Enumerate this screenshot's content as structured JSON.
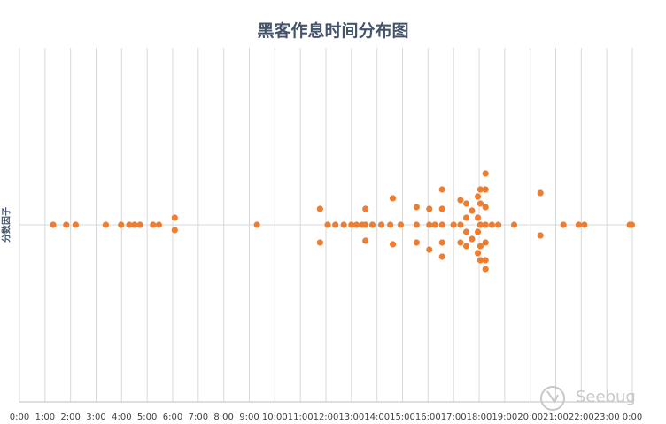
{
  "chart_data": {
    "type": "scatter",
    "title": "黑客作息时间分布图",
    "xlabel": "",
    "ylabel": "分数因子",
    "xlim": [
      0,
      24
    ],
    "ylim": [
      -1,
      1
    ],
    "grid": "vertical",
    "colors": {
      "points": "#ed7d31",
      "grid": "#d9d9d9",
      "title": "#44546a"
    },
    "x_ticks": [
      "0:00",
      "1:00",
      "2:00",
      "3:00",
      "4:00",
      "5:00",
      "6:00",
      "7:00",
      "8:00",
      "9:00",
      "10:00",
      "11:00",
      "12:00",
      "13:00",
      "14:00",
      "15:00",
      "16:00",
      "17:00",
      "18:00",
      "19:00",
      "20:00",
      "21:00",
      "22:00",
      "23:00",
      "0:00"
    ],
    "points": [
      {
        "x": 1.32,
        "y": 0
      },
      {
        "x": 1.83,
        "y": 0
      },
      {
        "x": 2.2,
        "y": 0
      },
      {
        "x": 3.38,
        "y": 0
      },
      {
        "x": 3.98,
        "y": 0
      },
      {
        "x": 4.3,
        "y": 0
      },
      {
        "x": 4.5,
        "y": 0
      },
      {
        "x": 4.72,
        "y": 0
      },
      {
        "x": 5.23,
        "y": 0
      },
      {
        "x": 5.46,
        "y": 0
      },
      {
        "x": 6.08,
        "y": 0.04
      },
      {
        "x": 6.08,
        "y": -0.03
      },
      {
        "x": 9.3,
        "y": 0
      },
      {
        "x": 11.77,
        "y": 0.09
      },
      {
        "x": 11.77,
        "y": -0.1
      },
      {
        "x": 12.07,
        "y": 0
      },
      {
        "x": 12.37,
        "y": 0
      },
      {
        "x": 12.7,
        "y": 0
      },
      {
        "x": 13.0,
        "y": 0
      },
      {
        "x": 13.2,
        "y": 0
      },
      {
        "x": 13.42,
        "y": 0
      },
      {
        "x": 13.55,
        "y": 0.09
      },
      {
        "x": 13.55,
        "y": 0
      },
      {
        "x": 13.55,
        "y": -0.09
      },
      {
        "x": 13.82,
        "y": 0
      },
      {
        "x": 14.17,
        "y": 0
      },
      {
        "x": 14.52,
        "y": 0
      },
      {
        "x": 14.62,
        "y": 0.15
      },
      {
        "x": 14.62,
        "y": -0.11
      },
      {
        "x": 14.93,
        "y": 0
      },
      {
        "x": 15.55,
        "y": 0.1
      },
      {
        "x": 15.55,
        "y": 0
      },
      {
        "x": 15.55,
        "y": -0.1
      },
      {
        "x": 16.05,
        "y": 0.09
      },
      {
        "x": 16.05,
        "y": 0
      },
      {
        "x": 16.05,
        "y": -0.14
      },
      {
        "x": 16.27,
        "y": 0
      },
      {
        "x": 16.55,
        "y": 0.2
      },
      {
        "x": 16.55,
        "y": 0.09
      },
      {
        "x": 16.55,
        "y": 0
      },
      {
        "x": 16.55,
        "y": -0.1
      },
      {
        "x": 16.55,
        "y": -0.18
      },
      {
        "x": 17.0,
        "y": 0
      },
      {
        "x": 17.27,
        "y": 0.14
      },
      {
        "x": 17.27,
        "y": 0
      },
      {
        "x": 17.27,
        "y": -0.1
      },
      {
        "x": 17.5,
        "y": 0.12
      },
      {
        "x": 17.5,
        "y": 0.04
      },
      {
        "x": 17.5,
        "y": -0.04
      },
      {
        "x": 17.5,
        "y": -0.12
      },
      {
        "x": 17.72,
        "y": 0.08
      },
      {
        "x": 17.72,
        "y": -0.08
      },
      {
        "x": 17.95,
        "y": 0.16
      },
      {
        "x": 17.95,
        "y": 0.04
      },
      {
        "x": 17.95,
        "y": -0.04
      },
      {
        "x": 17.95,
        "y": -0.16
      },
      {
        "x": 18.05,
        "y": 0.2
      },
      {
        "x": 18.05,
        "y": 0.12
      },
      {
        "x": 18.05,
        "y": 0
      },
      {
        "x": 18.05,
        "y": -0.12
      },
      {
        "x": 18.05,
        "y": -0.2
      },
      {
        "x": 18.25,
        "y": 0.29
      },
      {
        "x": 18.25,
        "y": 0.2
      },
      {
        "x": 18.25,
        "y": 0.1
      },
      {
        "x": 18.25,
        "y": 0
      },
      {
        "x": 18.25,
        "y": -0.1
      },
      {
        "x": 18.25,
        "y": -0.2
      },
      {
        "x": 18.25,
        "y": -0.25
      },
      {
        "x": 18.5,
        "y": 0
      },
      {
        "x": 18.75,
        "y": 0
      },
      {
        "x": 19.37,
        "y": 0
      },
      {
        "x": 20.4,
        "y": 0.18
      },
      {
        "x": 20.4,
        "y": -0.06
      },
      {
        "x": 21.3,
        "y": 0
      },
      {
        "x": 21.9,
        "y": 0
      },
      {
        "x": 22.12,
        "y": 0
      },
      {
        "x": 23.9,
        "y": 0
      },
      {
        "x": 23.98,
        "y": 0
      }
    ]
  },
  "watermark": {
    "text": "Seebug"
  }
}
